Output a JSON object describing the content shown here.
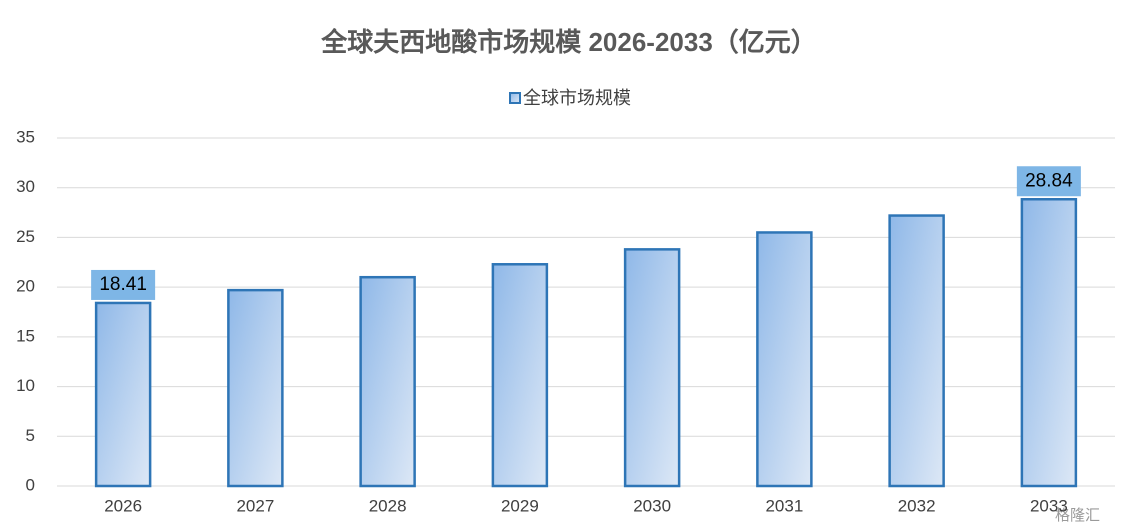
{
  "chart_data": {
    "type": "bar",
    "title": "全球夫西地酸市场规模 2026-2033（亿元）",
    "categories": [
      "2026",
      "2027",
      "2028",
      "2029",
      "2030",
      "2031",
      "2032",
      "2033"
    ],
    "series": [
      {
        "name": "全球市场规模",
        "color": "#2e75b6",
        "values": [
          18.41,
          19.7,
          21.0,
          22.3,
          23.8,
          25.5,
          27.2,
          28.84
        ],
        "value_labels": [
          "18.41",
          null,
          null,
          null,
          null,
          null,
          null,
          "28.84"
        ]
      }
    ],
    "ylim": [
      0,
      35
    ],
    "yticks": [
      0,
      5,
      10,
      15,
      20,
      25,
      30,
      35
    ],
    "grid": true,
    "legend": "top",
    "watermark": "格隆汇"
  }
}
